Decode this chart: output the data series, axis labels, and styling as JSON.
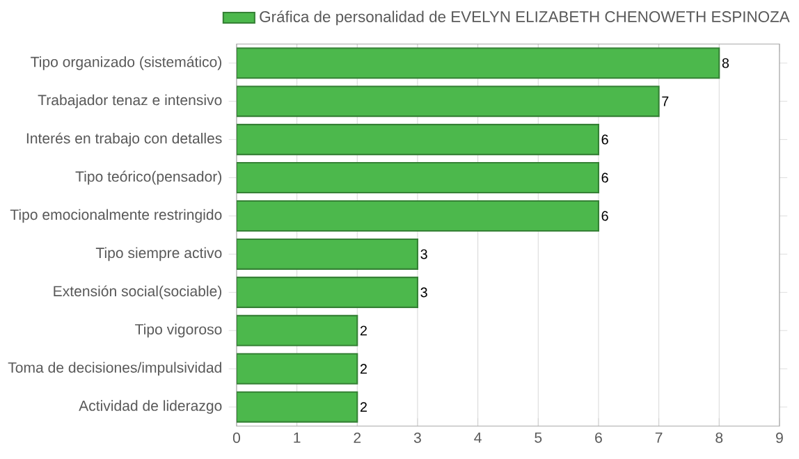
{
  "chart_data": {
    "type": "bar",
    "orientation": "horizontal",
    "categories": [
      "Tipo organizado (sistemático)",
      "Trabajador tenaz e intensivo",
      "Interés en trabajo con detalles",
      "Tipo teórico(pensador)",
      "Tipo emocionalmente restringido",
      "Tipo siempre activo",
      "Extensión social(sociable)",
      "Tipo vigoroso",
      "Toma de decisiones/impulsividad",
      "Actividad de liderazgo"
    ],
    "series": [
      {
        "name": "Gráfica de personalidad de EVELYN ELIZABETH CHENOWETH ESPINOZA",
        "color": "#4cb84c",
        "values": [
          8,
          7,
          6,
          6,
          6,
          3,
          3,
          2,
          2,
          2
        ]
      }
    ],
    "xlim": [
      0,
      9
    ],
    "xticks": [
      0,
      1,
      2,
      3,
      4,
      5,
      6,
      7,
      8,
      9
    ],
    "grid": "x",
    "legend": "top",
    "data_labels": true
  }
}
